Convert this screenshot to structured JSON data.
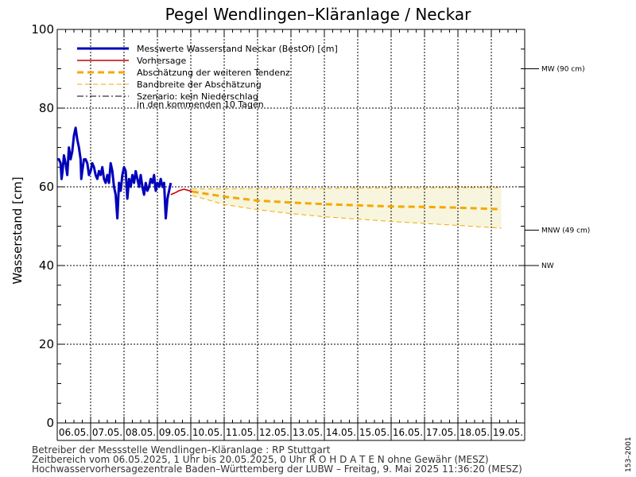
{
  "chart_data": {
    "type": "line",
    "title": "Pegel Wendlingen–Kläranlage / Neckar",
    "ylabel": "Wasserstand [cm]",
    "xlabel": "",
    "ylim": [
      0,
      100
    ],
    "yticks": [
      0,
      20,
      40,
      60,
      80,
      100
    ],
    "xlim": [
      "06.05.2025 00:00",
      "19.05.2025 24:00"
    ],
    "x_tick_labels": [
      "06.05.",
      "07.05.",
      "08.05.",
      "09.05.",
      "10.05.",
      "11.05.",
      "12.05.",
      "13.05.",
      "14.05.",
      "15.05.",
      "16.05.",
      "17.05.",
      "18.05.",
      "19.05."
    ],
    "grid": true,
    "legend_position": "top-left",
    "legend": [
      {
        "label": "Messwerte Wasserstand Neckar  (BestOf)   [cm]",
        "style": "solid-blue-thick"
      },
      {
        "label": "Vorhersage",
        "style": "solid-red"
      },
      {
        "label": "Abschätzung der weiteren Tendenz",
        "style": "dashed-orange-thick"
      },
      {
        "label": "Bandbreite der Abschätzung",
        "style": "dashed-orange-thin"
      },
      {
        "label": "Szenario: kein Niederschlag",
        "label2": "in den kommenden 10 Tagen",
        "style": "dashdot-black"
      }
    ],
    "reference_lines": [
      {
        "label": "MW (90 cm)",
        "value": 90
      },
      {
        "label": "MNW (49 cm)",
        "value": 49
      },
      {
        "label": "NW",
        "value": 40
      }
    ],
    "series": [
      {
        "name": "Messwerte Wasserstand Neckar",
        "color": "#0000bb",
        "x_day": [
          0.0,
          0.05,
          0.1,
          0.13,
          0.16,
          0.2,
          0.25,
          0.3,
          0.35,
          0.4,
          0.45,
          0.5,
          0.55,
          0.6,
          0.65,
          0.7,
          0.72,
          0.75,
          0.8,
          0.85,
          0.9,
          0.95,
          1.0,
          1.05,
          1.1,
          1.15,
          1.2,
          1.25,
          1.3,
          1.35,
          1.4,
          1.45,
          1.5,
          1.55,
          1.6,
          1.65,
          1.7,
          1.75,
          1.8,
          1.85,
          1.9,
          1.95,
          2.0,
          2.05,
          2.1,
          2.15,
          2.2,
          2.25,
          2.3,
          2.35,
          2.4,
          2.45,
          2.5,
          2.55,
          2.6,
          2.65,
          2.7,
          2.75,
          2.8,
          2.85,
          2.9,
          2.95,
          3.0,
          3.05,
          3.1,
          3.15,
          3.2,
          3.25,
          3.3,
          3.35,
          3.4
        ],
        "values": [
          67,
          67,
          66,
          62,
          64,
          68,
          66,
          63,
          70,
          67,
          69,
          73,
          75,
          72,
          70,
          67,
          62,
          64,
          67,
          67,
          66,
          63,
          64,
          66,
          65,
          63,
          62,
          64,
          63,
          65,
          62,
          61,
          63,
          61,
          66,
          64,
          60,
          58,
          52,
          61,
          59,
          63,
          65,
          64,
          57,
          62,
          60,
          63,
          61,
          64,
          62,
          60,
          63,
          60,
          58,
          61,
          59,
          60,
          62,
          61,
          63,
          59,
          61,
          60,
          62,
          60,
          61,
          52,
          57,
          59,
          61
        ]
      },
      {
        "name": "Vorhersage",
        "color": "#cc0000",
        "x_day": [
          3.4,
          3.48,
          3.56,
          3.64,
          3.72,
          3.8,
          3.88,
          3.96,
          4.04
        ],
        "values": [
          58,
          58.3,
          58.6,
          59,
          59.2,
          59.4,
          59.2,
          59,
          58.8
        ]
      },
      {
        "name": "Abschätzung der weiteren Tendenz",
        "color": "#f5a800",
        "x_day": [
          4.04,
          5.0,
          6.0,
          7.0,
          8.0,
          9.0,
          10.0,
          11.0,
          12.0,
          13.3
        ],
        "values": [
          58.8,
          57.5,
          56.5,
          56,
          55.6,
          55.3,
          55,
          54.9,
          54.7,
          54.3
        ]
      },
      {
        "name": "Bandbreite der Abschätzung (oben)",
        "color": "#f5a800",
        "x_day": [
          4.04,
          5.0,
          6.0,
          7.0,
          8.0,
          9.0,
          10.0,
          11.0,
          12.0,
          13.3
        ],
        "values": [
          59.5,
          59.5,
          59.6,
          59.6,
          59.6,
          59.7,
          59.7,
          59.7,
          59.8,
          59.8
        ]
      },
      {
        "name": "Bandbreite der Abschätzung (unten)",
        "color": "#f5a800",
        "x_day": [
          4.04,
          5.0,
          6.0,
          7.0,
          8.0,
          9.0,
          10.0,
          11.0,
          12.0,
          13.3
        ],
        "values": [
          57.8,
          55.5,
          54.2,
          53.2,
          52.4,
          51.8,
          51.2,
          50.7,
          50.2,
          49.5
        ]
      }
    ],
    "band_fill_color": "#f7f5dd"
  },
  "footer": {
    "line1": "Betreiber der Messstelle Wendlingen–Kläranlage : RP Stuttgart",
    "line2": "Zeitbereich vom 06.05.2025, 1 Uhr bis 20.05.2025, 0 Uhr   R O H D A T E N ohne Gewähr (MESZ)",
    "line3": "Hochwasservorhersagezentrale Baden–Württemberg der LUBW – Freitag, 9. Mai 2025 11:36:20 (MESZ)"
  },
  "side_code": "153–2001"
}
